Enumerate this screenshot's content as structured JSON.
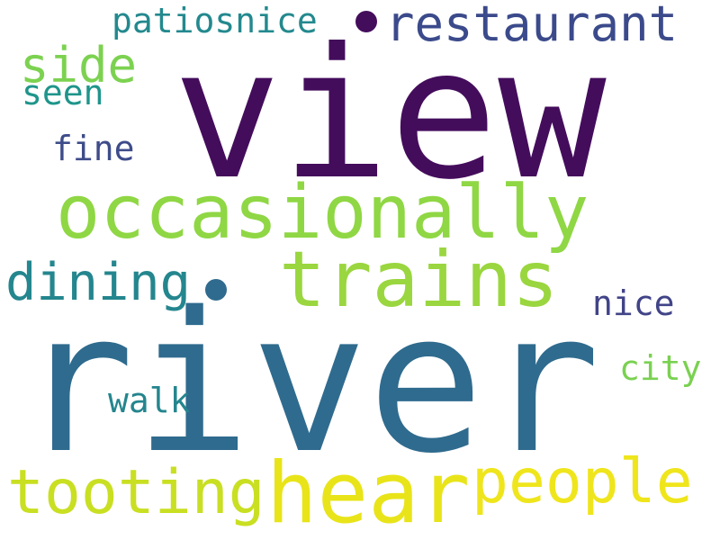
{
  "words": [
    {
      "text": "view",
      "color": "#440d5c"
    },
    {
      "text": "river",
      "color": "#2f6b8e"
    },
    {
      "text": "occasionally",
      "color": "#8fd744"
    },
    {
      "text": "trains",
      "color": "#9ad63f"
    },
    {
      "text": "restaurant",
      "color": "#3b4a8b"
    },
    {
      "text": "hear",
      "color": "#e8e419"
    },
    {
      "text": "people",
      "color": "#efe51c"
    },
    {
      "text": "tooting",
      "color": "#c9df22"
    },
    {
      "text": "dining",
      "color": "#24868e"
    },
    {
      "text": "side",
      "color": "#7cd250"
    },
    {
      "text": "patiosnice",
      "color": "#23898e"
    },
    {
      "text": "seen",
      "color": "#1f958b"
    },
    {
      "text": "fine",
      "color": "#3e4c8a"
    },
    {
      "text": "nice",
      "color": "#414487"
    },
    {
      "text": "city",
      "color": "#7ad151"
    },
    {
      "text": "walk",
      "color": "#25858e"
    }
  ],
  "dots": [
    {
      "color": "#440d5c"
    },
    {
      "color": "#2f6b8e"
    }
  ]
}
